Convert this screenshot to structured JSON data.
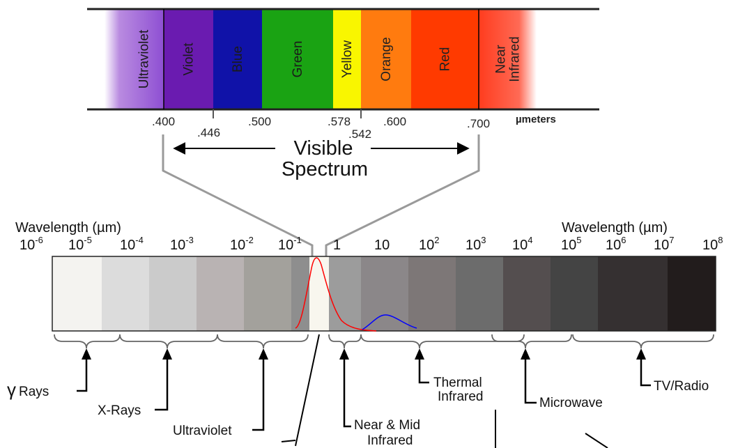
{
  "visible_bands": [
    {
      "label": "Ultraviolet",
      "color": "#8e4fd3"
    },
    {
      "label": "Violet",
      "color": "#6a1bb0"
    },
    {
      "label": "Blue",
      "color": "#1012a8"
    },
    {
      "label": "Green",
      "color": "#1aa313"
    },
    {
      "label": "Yellow",
      "color": "#f9f600"
    },
    {
      "label": "Orange",
      "color": "#ff7b0f"
    },
    {
      "label": "Red",
      "color": "#ff3a00"
    },
    {
      "label": "Near\nInfrared",
      "color": "#ff3c1e"
    }
  ],
  "visible_ticks": [
    ".400",
    ".446",
    ".500",
    ".578",
    ".542",
    ".600",
    ".700"
  ],
  "units_label": "µmeters",
  "visible_title": [
    "Visible",
    "Spectrum"
  ],
  "wavelength_label_left": "Wavelength (µm)",
  "wavelength_label_right": "Wavelength (µm)",
  "powers": [
    {
      "base": "10",
      "exp": "-6"
    },
    {
      "base": "10",
      "exp": "-5"
    },
    {
      "base": "10",
      "exp": "-4"
    },
    {
      "base": "10",
      "exp": "-3"
    },
    {
      "base": "10",
      "exp": "-2"
    },
    {
      "base": "10",
      "exp": "-1"
    },
    {
      "base": "1",
      "exp": ""
    },
    {
      "base": "10",
      "exp": ""
    },
    {
      "base": "10",
      "exp": "2"
    },
    {
      "base": "10",
      "exp": "3"
    },
    {
      "base": "10",
      "exp": "4"
    },
    {
      "base": "10",
      "exp": "5"
    },
    {
      "base": "10",
      "exp": "6"
    },
    {
      "base": "10",
      "exp": "7"
    },
    {
      "base": "10",
      "exp": "8"
    }
  ],
  "grey_bands": [
    "#f4f3f0",
    "#dcdcdc",
    "#cbcbcb",
    "#b9b3b3",
    "#a3a19c",
    "#8e8e8e",
    "#f8f6ee",
    "#9c9c9c",
    "#8b8789",
    "#7d7777",
    "#6c6c6c",
    "#544e4f",
    "#444444",
    "#353031",
    "#221c1c"
  ],
  "regions": {
    "gamma": "Rays",
    "gamma_symbol": "γ",
    "xrays": "X-Rays",
    "ultraviolet": "Ultraviolet",
    "near_mid": [
      "Near & Mid",
      "Infrared"
    ],
    "thermal": [
      "Thermal",
      "Infrared"
    ],
    "microwave": "Microwave",
    "tv_radio": "TV/Radio"
  },
  "curve_colors": {
    "solar": "#ff0000",
    "earth": "#0000ff"
  }
}
